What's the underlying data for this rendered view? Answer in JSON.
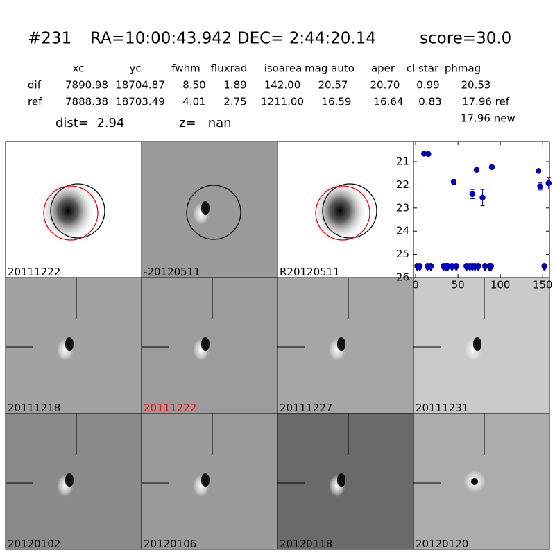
{
  "header": {
    "id": "#231",
    "coords": "RA=10:00:43.942 DEC= 2:44:20.14",
    "score": "score=30.0"
  },
  "table": {
    "columns": [
      "xc",
      "yc",
      "fwhm",
      "fluxrad",
      "isoarea",
      "mag auto",
      "aper",
      "cl star",
      "phmag"
    ],
    "rows": [
      {
        "label": "dif",
        "cells": [
          "7890.98",
          "18704.87",
          "8.50",
          "1.89",
          "142.00",
          "20.57",
          "20.70",
          "0.99",
          "20.53"
        ]
      },
      {
        "label": "ref",
        "cells": [
          "7888.38",
          "18703.49",
          "4.01",
          "2.75",
          "1211.00",
          "16.59",
          "16.64",
          "0.83",
          "17.96 ref"
        ]
      }
    ],
    "extra": "17.96 new"
  },
  "dist": "dist=  2.94",
  "z": "z=   nan",
  "panels": [
    {
      "label": "20111222",
      "color": "#000000"
    },
    {
      "label": "-20120511",
      "color": "#000000"
    },
    {
      "label": "R20120511",
      "color": "#000000"
    },
    {
      "label": "20111218",
      "color": "#000000"
    },
    {
      "label": "20111222",
      "color": "#ff0000"
    },
    {
      "label": "20111227",
      "color": "#000000"
    },
    {
      "label": "20111231",
      "color": "#000000"
    },
    {
      "label": "20120102",
      "color": "#000000"
    },
    {
      "label": "20120106",
      "color": "#000000"
    },
    {
      "label": "20120118",
      "color": "#000000"
    },
    {
      "label": "20120120",
      "color": "#000000"
    }
  ],
  "chart_data": {
    "type": "scatter",
    "xlim": [
      -2.5,
      158
    ],
    "ylim": [
      26,
      20.13
    ],
    "xticks": [
      0,
      50,
      100,
      150
    ],
    "yticks": [
      21,
      22,
      23,
      24,
      25,
      26
    ],
    "series": [
      {
        "color": "#0000cc",
        "marker": "circle",
        "x": [
          10,
          15,
          45,
          67,
          72,
          79,
          90,
          145,
          147,
          157
        ],
        "values": [
          20.65,
          20.67,
          21.87,
          22.4,
          21.35,
          22.55,
          21.23,
          21.4,
          22.07,
          21.93
        ],
        "errors": [
          0.03,
          0.03,
          0.1,
          0.2,
          0.08,
          0.35,
          0.05,
          0.05,
          0.15,
          0.25
        ]
      },
      {
        "color": "#0000cc",
        "marker": "limit",
        "x": [
          2,
          5,
          14,
          18,
          33,
          36,
          38,
          43,
          48,
          60,
          64,
          67,
          70,
          74,
          82,
          87,
          89,
          152
        ],
        "values": [
          25.5,
          25.5,
          25.5,
          25.5,
          25.5,
          25.5,
          25.5,
          25.5,
          25.5,
          25.5,
          25.5,
          25.5,
          25.5,
          25.5,
          25.5,
          25.5,
          25.5,
          25.5
        ]
      }
    ]
  }
}
